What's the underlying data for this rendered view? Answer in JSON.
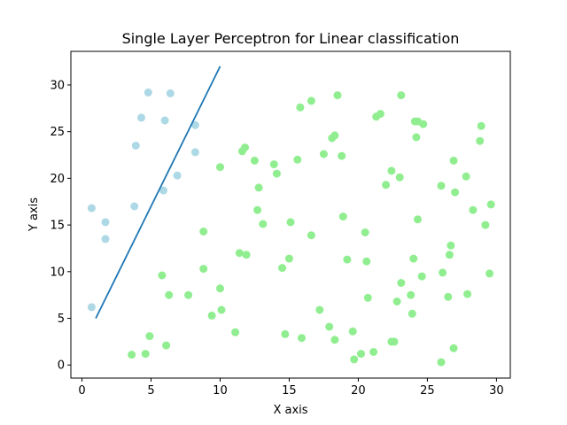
{
  "chart_data": {
    "type": "scatter",
    "title": "Single Layer Perceptron for Linear classification",
    "xlabel": "X axis",
    "ylabel": "Y axis",
    "xlim": [
      -0.8,
      31.0
    ],
    "ylim": [
      -1.4,
      33.6
    ],
    "xticks": [
      0,
      5,
      10,
      15,
      20,
      25,
      30
    ],
    "yticks": [
      0,
      5,
      10,
      15,
      20,
      25,
      30
    ],
    "grid": false,
    "colors": {
      "class_a": "#add8e6",
      "class_b": "#90ee90",
      "line": "#1f77b4"
    },
    "series": [
      {
        "class": "class_a",
        "points": [
          [
            0.7,
            16.8
          ],
          [
            1.7,
            15.3
          ],
          [
            1.7,
            13.5
          ],
          [
            0.7,
            6.2
          ],
          [
            3.8,
            17.0
          ],
          [
            3.9,
            23.5
          ],
          [
            4.3,
            26.5
          ],
          [
            4.8,
            29.2
          ],
          [
            5.9,
            18.7
          ],
          [
            6.0,
            26.2
          ],
          [
            6.4,
            29.1
          ],
          [
            6.9,
            20.3
          ],
          [
            8.2,
            25.7
          ],
          [
            8.2,
            22.8
          ]
        ]
      },
      {
        "class": "class_b",
        "points": [
          [
            3.6,
            1.1
          ],
          [
            4.6,
            1.2
          ],
          [
            4.9,
            3.1
          ],
          [
            6.1,
            2.1
          ],
          [
            5.8,
            9.6
          ],
          [
            6.3,
            7.5
          ],
          [
            7.7,
            7.5
          ],
          [
            8.8,
            10.3
          ],
          [
            8.8,
            14.3
          ],
          [
            9.4,
            5.3
          ],
          [
            10.0,
            8.2
          ],
          [
            10.1,
            5.9
          ],
          [
            10.0,
            21.2
          ],
          [
            11.1,
            3.5
          ],
          [
            11.4,
            12.0
          ],
          [
            11.9,
            11.8
          ],
          [
            11.6,
            22.9
          ],
          [
            11.8,
            23.3
          ],
          [
            12.5,
            21.9
          ],
          [
            12.7,
            16.6
          ],
          [
            12.8,
            19.0
          ],
          [
            13.1,
            15.1
          ],
          [
            13.9,
            21.5
          ],
          [
            14.1,
            20.5
          ],
          [
            14.5,
            10.4
          ],
          [
            14.7,
            3.3
          ],
          [
            15.0,
            11.4
          ],
          [
            15.1,
            15.3
          ],
          [
            15.6,
            22.0
          ],
          [
            15.9,
            2.9
          ],
          [
            15.8,
            27.6
          ],
          [
            16.6,
            28.3
          ],
          [
            16.6,
            13.9
          ],
          [
            17.2,
            5.9
          ],
          [
            17.5,
            22.6
          ],
          [
            17.9,
            4.1
          ],
          [
            18.1,
            24.3
          ],
          [
            18.3,
            24.6
          ],
          [
            18.3,
            2.7
          ],
          [
            18.5,
            28.9
          ],
          [
            18.8,
            22.4
          ],
          [
            18.9,
            15.9
          ],
          [
            19.2,
            11.3
          ],
          [
            19.6,
            3.6
          ],
          [
            19.7,
            0.6
          ],
          [
            20.2,
            1.2
          ],
          [
            20.5,
            14.2
          ],
          [
            20.6,
            11.1
          ],
          [
            20.7,
            7.2
          ],
          [
            21.1,
            1.4
          ],
          [
            21.3,
            26.6
          ],
          [
            21.6,
            26.9
          ],
          [
            22.0,
            19.3
          ],
          [
            22.4,
            20.8
          ],
          [
            22.4,
            2.5
          ],
          [
            22.6,
            2.5
          ],
          [
            22.8,
            6.8
          ],
          [
            23.0,
            20.1
          ],
          [
            23.1,
            8.8
          ],
          [
            23.1,
            28.9
          ],
          [
            23.8,
            7.5
          ],
          [
            23.9,
            5.5
          ],
          [
            24.0,
            11.4
          ],
          [
            24.1,
            26.1
          ],
          [
            24.2,
            24.4
          ],
          [
            24.3,
            26.1
          ],
          [
            24.3,
            15.6
          ],
          [
            24.6,
            9.5
          ],
          [
            24.7,
            25.8
          ],
          [
            26.0,
            0.3
          ],
          [
            26.0,
            19.2
          ],
          [
            26.1,
            9.9
          ],
          [
            26.5,
            7.3
          ],
          [
            26.6,
            11.8
          ],
          [
            26.7,
            12.8
          ],
          [
            26.9,
            21.9
          ],
          [
            26.9,
            1.8
          ],
          [
            27.0,
            18.5
          ],
          [
            27.8,
            20.2
          ],
          [
            27.9,
            7.6
          ],
          [
            28.3,
            16.6
          ],
          [
            28.8,
            24.0
          ],
          [
            28.9,
            25.6
          ],
          [
            29.2,
            15.0
          ],
          [
            29.5,
            9.8
          ],
          [
            29.6,
            17.2
          ]
        ]
      }
    ],
    "decision_line": [
      [
        1.0,
        5.0
      ],
      [
        10.0,
        32.0
      ]
    ]
  }
}
